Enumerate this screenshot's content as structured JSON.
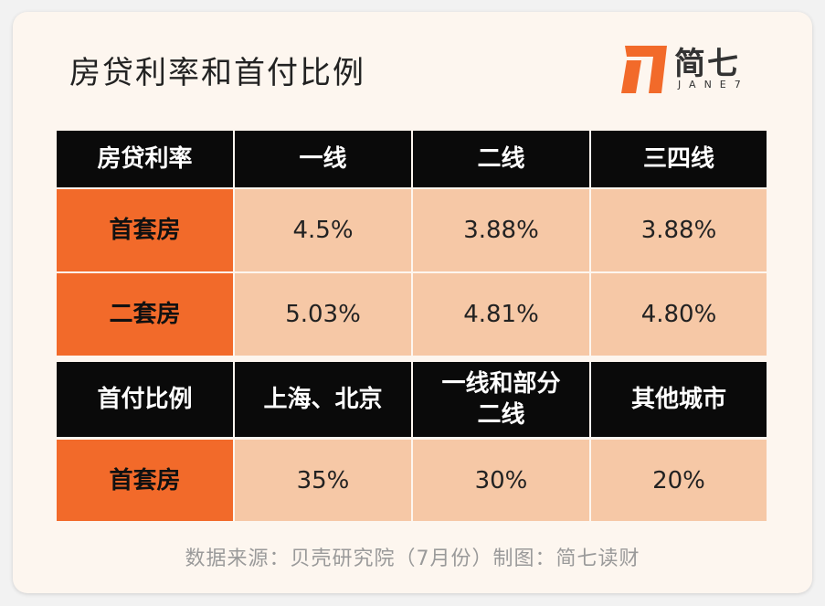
{
  "title": "房贷利率和首付比例",
  "logo": {
    "name": "简七",
    "sub": "JANE7",
    "accent": "#f26a2a"
  },
  "colors": {
    "header_bg": "#0a0a0a",
    "label_bg": "#f26a2a",
    "value_bg": "#f6c8a6",
    "page_bg": "#fdf6ef"
  },
  "rate_table": {
    "headers": [
      "房贷利率",
      "一线",
      "二线",
      "三四线"
    ],
    "rows": [
      {
        "label": "首套房",
        "values": [
          "4.5%",
          "3.88%",
          "3.88%"
        ]
      },
      {
        "label": "二套房",
        "values": [
          "5.03%",
          "4.81%",
          "4.80%"
        ]
      }
    ]
  },
  "down_table": {
    "headers": [
      "首付比例",
      "上海、北京",
      "一线和部分二线",
      "其他城市"
    ],
    "rows": [
      {
        "label": "首套房",
        "values": [
          "35%",
          "30%",
          "20%"
        ]
      }
    ]
  },
  "source": "数据来源：贝壳研究院（7月份）制图：简七读财"
}
